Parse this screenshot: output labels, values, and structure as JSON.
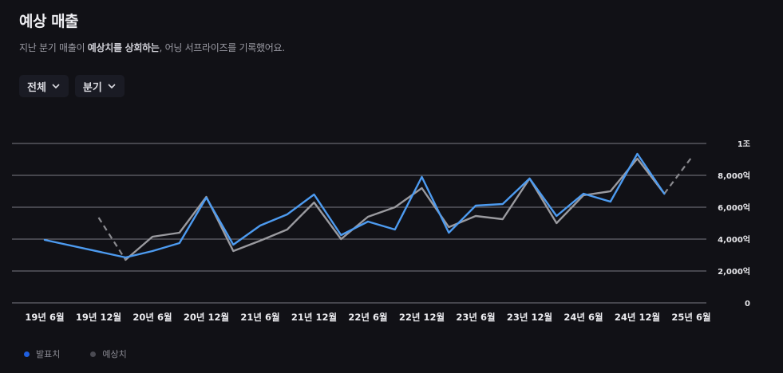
{
  "header": {
    "title": "예상 매출",
    "subtitle_pre": "지난 분기 매출이 ",
    "subtitle_bold": "예상치를 상회하는",
    "subtitle_post": ", 어닝 서프라이즈를 기록했어요."
  },
  "filters": [
    {
      "label": "전체",
      "icon": "chevron-down-icon"
    },
    {
      "label": "분기",
      "icon": "chevron-down-icon"
    }
  ],
  "legend": [
    {
      "label": "발표치",
      "color": "#1f5fe0"
    },
    {
      "label": "예상치",
      "color": "#4a4a52"
    }
  ],
  "colors": {
    "actual_line": "#4d9bf0",
    "estimate_line": "#9a9a9f",
    "estimate_dashed": "#8a8a8f",
    "grid": "#7c7c84"
  },
  "chart_data": {
    "type": "line",
    "x_tick_labels": [
      "19년 6월",
      "19년 12월",
      "20년 6월",
      "20년 12월",
      "21년 6월",
      "21년 12월",
      "22년 6월",
      "22년 12월",
      "23년 6월",
      "23년 12월",
      "24년 6월",
      "24년 12월",
      "25년 6월"
    ],
    "y_tick_labels": [
      "0",
      "2,000억",
      "4,000억",
      "6,000억",
      "8,000억",
      "1조"
    ],
    "y_ticks": [
      0,
      2000,
      4000,
      6000,
      8000,
      10000
    ],
    "ylim": [
      0,
      10000
    ],
    "x_index_range": [
      0,
      25
    ],
    "series": [
      {
        "name": "발표치",
        "points": [
          [
            0,
            3950
          ],
          [
            3,
            2850
          ],
          [
            4,
            3250
          ],
          [
            5,
            3750
          ],
          [
            6,
            6600
          ],
          [
            7,
            3650
          ],
          [
            8,
            4850
          ],
          [
            9,
            5550
          ],
          [
            10,
            6800
          ],
          [
            11,
            4250
          ],
          [
            12,
            5100
          ],
          [
            13,
            4600
          ],
          [
            14,
            7900
          ],
          [
            15,
            4400
          ],
          [
            16,
            6100
          ],
          [
            17,
            6200
          ],
          [
            18,
            7800
          ],
          [
            19,
            5450
          ],
          [
            20,
            6850
          ],
          [
            21,
            6350
          ],
          [
            22,
            9350
          ],
          [
            23,
            6850
          ]
        ]
      },
      {
        "name": "예상치",
        "points": [
          [
            3,
            2700
          ],
          [
            4,
            4150
          ],
          [
            5,
            4400
          ],
          [
            6,
            6650
          ],
          [
            7,
            3250
          ],
          [
            8,
            3900
          ],
          [
            9,
            4600
          ],
          [
            10,
            6300
          ],
          [
            11,
            4000
          ],
          [
            12,
            5400
          ],
          [
            13,
            6000
          ],
          [
            14,
            7200
          ],
          [
            15,
            4750
          ],
          [
            16,
            5450
          ],
          [
            17,
            5250
          ],
          [
            18,
            7800
          ],
          [
            19,
            5000
          ],
          [
            20,
            6750
          ],
          [
            21,
            7000
          ],
          [
            22,
            9050
          ],
          [
            23,
            6850
          ]
        ],
        "forecast_segments": [
          [
            [
              2,
              5350
            ],
            [
              3,
              2700
            ]
          ],
          [
            [
              23,
              6850
            ],
            [
              24,
              9100
            ]
          ]
        ]
      }
    ],
    "grid": true
  }
}
